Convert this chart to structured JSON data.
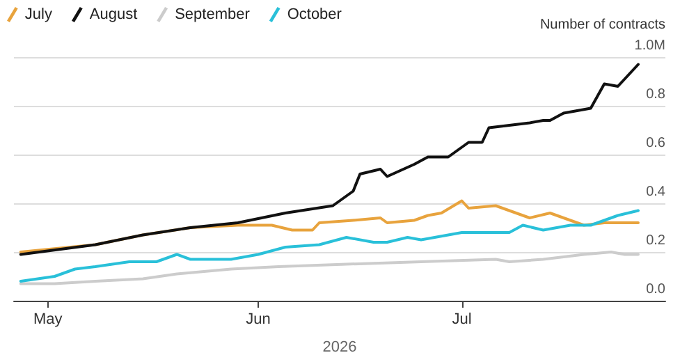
{
  "chart_data": {
    "type": "line",
    "ylabel": "Number of contracts",
    "xlabel": "2026",
    "legend": "top left",
    "grid": "y",
    "marker": "none",
    "line_style": "solid",
    "xlim": [
      "2026-04-26",
      "2026-07-31"
    ],
    "xticks": [
      {
        "value": "2026-05-01",
        "label": "May"
      },
      {
        "value": "2026-06-01",
        "label": "Jun"
      },
      {
        "value": "2026-07-01",
        "label": "Jul"
      }
    ],
    "ylim": [
      0,
      1
    ],
    "yticks": [
      {
        "value": 0,
        "label": "0.0"
      },
      {
        "value": 0.2,
        "label": "0.2"
      },
      {
        "value": 0.4,
        "label": "0.4"
      },
      {
        "value": 0.6,
        "label": "0.6"
      },
      {
        "value": 0.8,
        "label": "0.8"
      },
      {
        "value": 1,
        "label": "1.0M"
      }
    ],
    "series": [
      {
        "name": "July",
        "color": "#e8a33d",
        "x": [
          "2026-04-27",
          "2026-05-08",
          "2026-05-15",
          "2026-05-22",
          "2026-05-29",
          "2026-06-03",
          "2026-06-06",
          "2026-06-09",
          "2026-06-10",
          "2026-06-15",
          "2026-06-19",
          "2026-06-20",
          "2026-06-24",
          "2026-06-26",
          "2026-06-28",
          "2026-07-01",
          "2026-07-02",
          "2026-07-06",
          "2026-07-11",
          "2026-07-14",
          "2026-07-17",
          "2026-07-19",
          "2026-07-22",
          "2026-07-27"
        ],
        "values": [
          0.2,
          0.23,
          0.27,
          0.3,
          0.31,
          0.31,
          0.29,
          0.29,
          0.32,
          0.33,
          0.34,
          0.32,
          0.33,
          0.35,
          0.36,
          0.41,
          0.38,
          0.39,
          0.34,
          0.36,
          0.33,
          0.31,
          0.32,
          0.32
        ]
      },
      {
        "name": "August",
        "color": "#111111",
        "x": [
          "2026-04-27",
          "2026-05-08",
          "2026-05-15",
          "2026-05-22",
          "2026-05-29",
          "2026-06-05",
          "2026-06-12",
          "2026-06-15",
          "2026-06-16",
          "2026-06-19",
          "2026-06-20",
          "2026-06-24",
          "2026-06-26",
          "2026-06-29",
          "2026-07-02",
          "2026-07-04",
          "2026-07-05",
          "2026-07-11",
          "2026-07-13",
          "2026-07-14",
          "2026-07-16",
          "2026-07-20",
          "2026-07-22",
          "2026-07-24",
          "2026-07-25",
          "2026-07-27"
        ],
        "values": [
          0.19,
          0.23,
          0.27,
          0.3,
          0.32,
          0.36,
          0.39,
          0.45,
          0.52,
          0.54,
          0.51,
          0.56,
          0.59,
          0.59,
          0.65,
          0.65,
          0.71,
          0.73,
          0.74,
          0.74,
          0.77,
          0.79,
          0.89,
          0.88,
          0.91,
          0.97
        ]
      },
      {
        "name": "September",
        "color": "#cccccc",
        "x": [
          "2026-04-27",
          "2026-05-02",
          "2026-05-08",
          "2026-05-15",
          "2026-05-20",
          "2026-05-28",
          "2026-06-04",
          "2026-06-14",
          "2026-06-25",
          "2026-07-06",
          "2026-07-08",
          "2026-07-13",
          "2026-07-19",
          "2026-07-23",
          "2026-07-25",
          "2026-07-27"
        ],
        "values": [
          0.07,
          0.07,
          0.08,
          0.09,
          0.11,
          0.13,
          0.14,
          0.15,
          0.16,
          0.17,
          0.16,
          0.17,
          0.19,
          0.2,
          0.19,
          0.19
        ]
      },
      {
        "name": "October",
        "color": "#29c0d9",
        "x": [
          "2026-04-27",
          "2026-05-02",
          "2026-05-05",
          "2026-05-08",
          "2026-05-13",
          "2026-05-17",
          "2026-05-20",
          "2026-05-22",
          "2026-05-28",
          "2026-06-01",
          "2026-06-05",
          "2026-06-10",
          "2026-06-14",
          "2026-06-18",
          "2026-06-20",
          "2026-06-23",
          "2026-06-25",
          "2026-07-01",
          "2026-07-08",
          "2026-07-10",
          "2026-07-13",
          "2026-07-17",
          "2026-07-20",
          "2026-07-24",
          "2026-07-27"
        ],
        "values": [
          0.08,
          0.1,
          0.13,
          0.14,
          0.16,
          0.16,
          0.19,
          0.17,
          0.17,
          0.19,
          0.22,
          0.23,
          0.26,
          0.24,
          0.24,
          0.26,
          0.25,
          0.28,
          0.28,
          0.31,
          0.29,
          0.31,
          0.31,
          0.35,
          0.37
        ]
      }
    ]
  }
}
